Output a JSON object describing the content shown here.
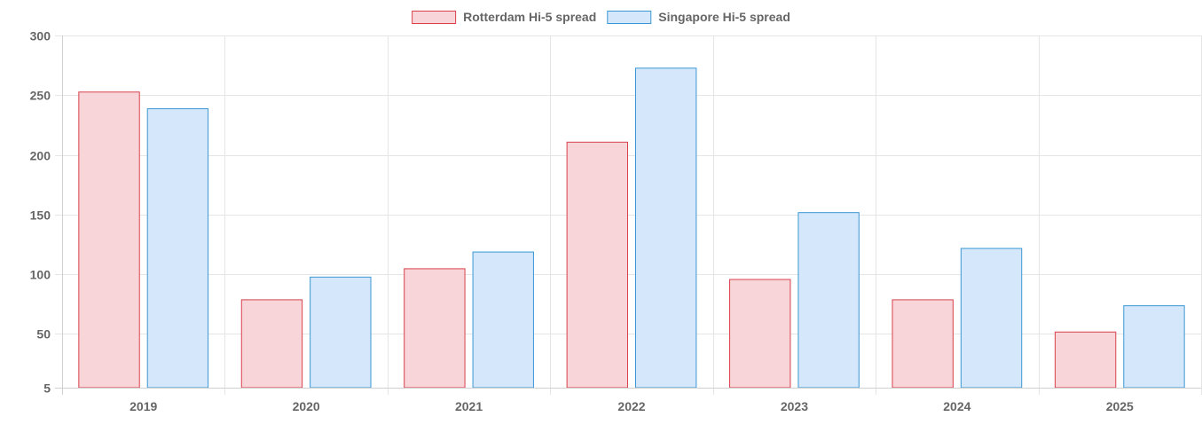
{
  "chart_data": {
    "type": "bar",
    "title": "",
    "xlabel": "",
    "ylabel": "",
    "categories": [
      "2019",
      "2020",
      "2021",
      "2022",
      "2023",
      "2024",
      "2025"
    ],
    "series": [
      {
        "name": "Rotterdam Hi-5 spread",
        "values": [
          253,
          79,
          105,
          211,
          96,
          79,
          52
        ],
        "fill": "#f7d5d9",
        "stroke": "#d9404b"
      },
      {
        "name": "Singapore Hi-5 spread",
        "values": [
          239,
          98,
          119,
          273,
          152,
          122,
          74
        ],
        "fill": "#d4e7fb",
        "stroke": "#3b97d3"
      }
    ],
    "ylim": [
      5,
      300
    ],
    "yticks": [
      5,
      50,
      100,
      150,
      200,
      250,
      300
    ],
    "grid": true,
    "legend_position": "top-center"
  }
}
